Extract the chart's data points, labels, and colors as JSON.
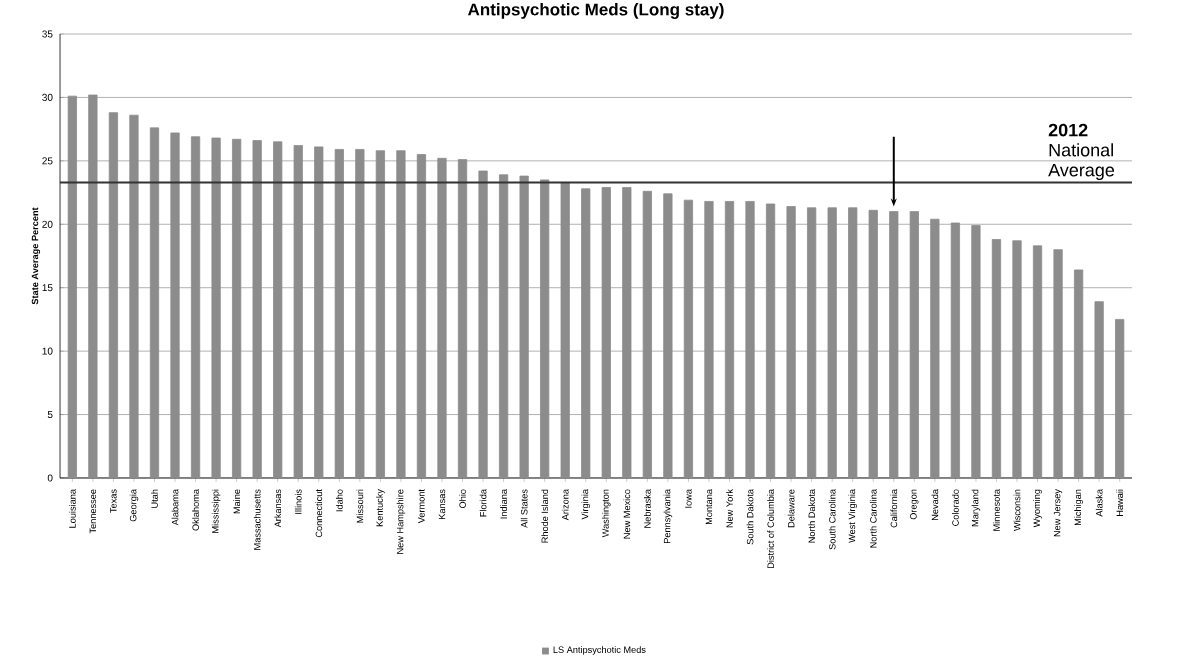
{
  "chart_data": {
    "type": "bar",
    "title": "Antipsychotic Meds (Long stay)",
    "ylabel": "State Average Percent",
    "categories": [
      "Louisiana",
      "Tennessee",
      "Texas",
      "Georgia",
      "Utah",
      "Alabama",
      "Oklahoma",
      "Mississippi",
      "Maine",
      "Massachusetts",
      "Arkansas",
      "Illinois",
      "Connecticut",
      "Idaho",
      "Missouri",
      "Kentucky",
      "New Hampshire",
      "Vermont",
      "Kansas",
      "Ohio",
      "Florida",
      "Indiana",
      "All States",
      "Rhode Island",
      "Arizona",
      "Virginia",
      "Washington",
      "New Mexico",
      "Nebraska",
      "Pennsylvania",
      "Iowa",
      "Montana",
      "New York",
      "South Dakota",
      "District of Columbia",
      "Delaware",
      "North Dakota",
      "South Carolina",
      "West Virginia",
      "North Carolina",
      "California",
      "Oregon",
      "Nevada",
      "Colorado",
      "Maryland",
      "Minnesota",
      "Wisconsin",
      "Wyoming",
      "New Jersey",
      "Michigan",
      "Alaska",
      "Hawaii"
    ],
    "series": [
      {
        "name": "LS Antipsychotic Meds",
        "color": "#8c8c8c",
        "values": [
          30.1,
          30.2,
          28.8,
          28.6,
          27.6,
          27.2,
          26.9,
          26.8,
          26.7,
          26.6,
          26.5,
          26.2,
          26.1,
          25.9,
          25.9,
          25.8,
          25.8,
          25.5,
          25.2,
          25.1,
          24.2,
          23.9,
          23.8,
          23.5,
          23.3,
          22.8,
          22.9,
          22.9,
          22.6,
          22.4,
          21.9,
          21.8,
          21.8,
          21.8,
          21.6,
          21.4,
          21.3,
          21.3,
          21.3,
          21.1,
          21.0,
          21.0,
          20.4,
          20.1,
          19.9,
          18.8,
          18.7,
          18.3,
          18.0,
          16.4,
          13.9,
          12.5
        ]
      }
    ],
    "ylim": [
      0,
      35
    ],
    "yticks": [
      0,
      5,
      10,
      15,
      20,
      25,
      30,
      35
    ],
    "grid": "y",
    "legend": "bottom",
    "ref_lines": [
      {
        "axis": "y",
        "value": 23.3,
        "label": "**2012** National Average",
        "color": "#333333"
      }
    ]
  }
}
